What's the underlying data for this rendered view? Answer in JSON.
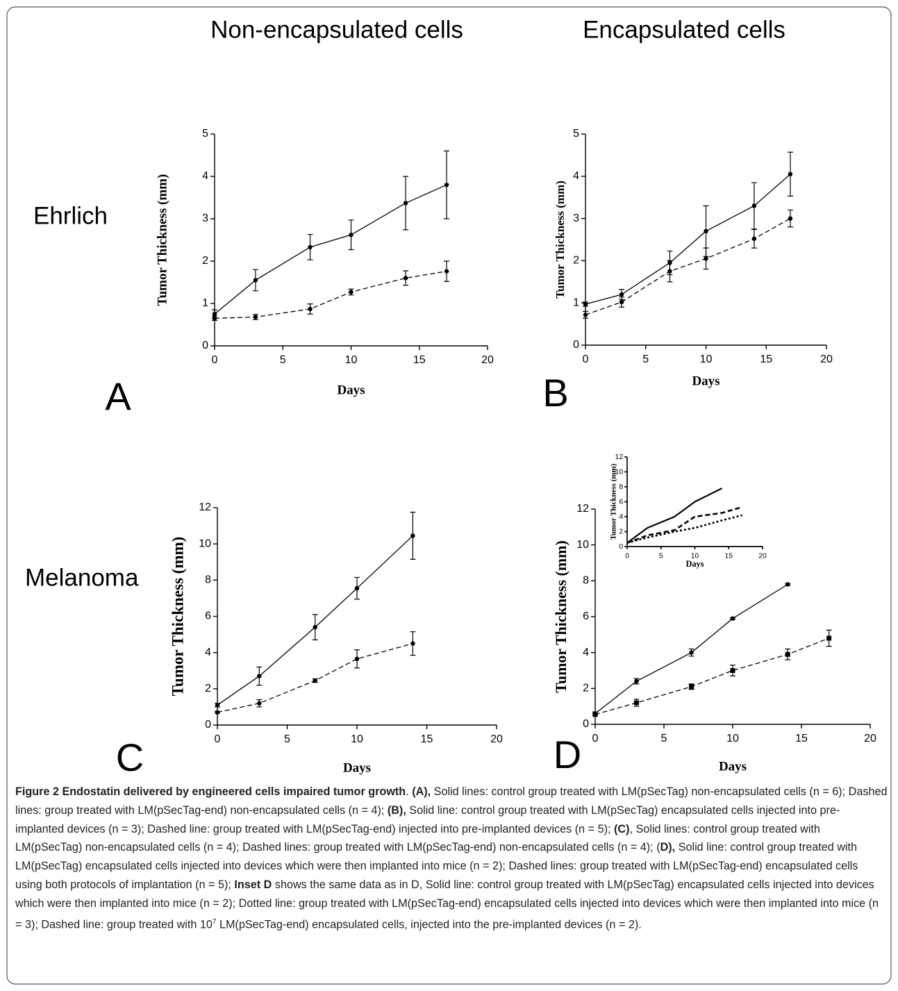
{
  "headers": [
    "Non-encapsulated cells",
    "Encapsulated cells"
  ],
  "row_labels": [
    "Ehrlich",
    "Melanoma"
  ],
  "panel_labels": [
    "A",
    "B",
    "C",
    "D"
  ],
  "chart_data": [
    {
      "type": "line",
      "ylabel": "Tumor Thickness (mm)",
      "xlabel": "Days",
      "xlim": [
        0,
        20
      ],
      "xticks": [
        0,
        5,
        10,
        15,
        20
      ],
      "ylim": [
        0,
        5
      ],
      "yticks": [
        0,
        1,
        2,
        3,
        4,
        5
      ],
      "series": [
        {
          "color": "#000000",
          "linestyle": "solid",
          "marker": "circle",
          "x": [
            0,
            3,
            7,
            10,
            14,
            17
          ],
          "values": [
            0.75,
            1.55,
            2.33,
            2.62,
            3.37,
            3.8
          ],
          "errors": [
            0.1,
            0.25,
            0.3,
            0.35,
            0.63,
            0.8
          ]
        },
        {
          "color": "#000000",
          "linestyle": "dashed",
          "marker": "circle",
          "x": [
            0,
            3,
            7,
            10,
            14,
            17
          ],
          "values": [
            0.65,
            0.68,
            0.87,
            1.27,
            1.6,
            1.76
          ],
          "errors": [
            0.05,
            0.06,
            0.12,
            0.07,
            0.17,
            0.24
          ]
        }
      ]
    },
    {
      "type": "line",
      "ylabel": "Tumor Thickness (mm)",
      "xlabel": "Days",
      "xlim": [
        0,
        20
      ],
      "xticks": [
        0,
        5,
        10,
        15,
        20
      ],
      "ylim": [
        0,
        5
      ],
      "yticks": [
        0,
        1,
        2,
        3,
        4,
        5
      ],
      "series": [
        {
          "color": "#000000",
          "linestyle": "solid",
          "marker": "circle",
          "x": [
            0,
            3,
            7,
            10,
            14,
            17
          ],
          "values": [
            0.97,
            1.2,
            1.95,
            2.7,
            3.3,
            4.05
          ],
          "errors": [
            0.05,
            0.12,
            0.28,
            0.6,
            0.55,
            0.52
          ]
        },
        {
          "color": "#000000",
          "linestyle": "dashed",
          "marker": "circle",
          "x": [
            0,
            3,
            7,
            10,
            14,
            17
          ],
          "values": [
            0.72,
            1.02,
            1.75,
            2.05,
            2.52,
            3.0
          ],
          "errors": [
            0.08,
            0.12,
            0.25,
            0.25,
            0.22,
            0.2
          ]
        }
      ]
    },
    {
      "type": "line",
      "ylabel": "Tumor Thickness (mm)",
      "xlabel": "Days",
      "xlim": [
        0,
        20
      ],
      "xticks": [
        0,
        5,
        10,
        15,
        20
      ],
      "ylim": [
        0,
        12
      ],
      "yticks": [
        0,
        2,
        4,
        6,
        8,
        10,
        12
      ],
      "series": [
        {
          "color": "#000000",
          "linestyle": "solid",
          "marker": "circle",
          "x": [
            0,
            3,
            7,
            10,
            14
          ],
          "values": [
            1.1,
            2.7,
            5.4,
            7.55,
            10.45
          ],
          "errors": [
            0.1,
            0.5,
            0.7,
            0.6,
            1.3
          ]
        },
        {
          "color": "#000000",
          "linestyle": "dashed",
          "marker": "circle",
          "x": [
            0,
            3,
            7,
            10,
            14
          ],
          "values": [
            0.7,
            1.2,
            2.45,
            3.65,
            4.5
          ],
          "errors": [
            0.05,
            0.2,
            0.1,
            0.5,
            0.65
          ]
        }
      ]
    },
    {
      "type": "line",
      "ylabel": "Tumor Thickness (mm)",
      "xlabel": "Days",
      "xlim": [
        0,
        20
      ],
      "xticks": [
        0,
        5,
        10,
        15,
        20
      ],
      "ylim": [
        0,
        12
      ],
      "yticks": [
        0,
        2,
        4,
        6,
        8,
        10,
        12
      ],
      "series": [
        {
          "color": "#000000",
          "linestyle": "solid",
          "marker": "circle",
          "x": [
            0,
            3,
            7,
            10,
            14
          ],
          "values": [
            0.6,
            2.4,
            4.0,
            5.9,
            7.8
          ],
          "errors": [
            0.1,
            0.15,
            0.2,
            0.05,
            0.05
          ]
        },
        {
          "color": "#000000",
          "linestyle": "dashed",
          "marker": "square",
          "x": [
            0,
            3,
            7,
            10,
            14,
            17
          ],
          "values": [
            0.55,
            1.2,
            2.1,
            3.0,
            3.9,
            4.8
          ],
          "errors": [
            0.05,
            0.2,
            0.15,
            0.3,
            0.3,
            0.45
          ]
        }
      ]
    },
    {
      "type": "line",
      "ylabel": "Tumor Thickness (mm)",
      "xlabel": "Days",
      "xlim": [
        0,
        20
      ],
      "xticks": [
        0,
        5,
        10,
        15,
        20
      ],
      "ylim": [
        0,
        12
      ],
      "yticks": [
        0,
        2,
        4,
        6,
        8,
        10,
        12
      ],
      "series": [
        {
          "color": "#000000",
          "linestyle": "solid",
          "marker": "none",
          "x": [
            0,
            3,
            7,
            10,
            14
          ],
          "values": [
            0.5,
            2.5,
            4.0,
            6.0,
            7.8
          ]
        },
        {
          "color": "#000000",
          "linestyle": "dashed",
          "marker": "none",
          "x": [
            0,
            3,
            7,
            10,
            14,
            17
          ],
          "values": [
            0.5,
            1.5,
            2.2,
            4.0,
            4.5,
            5.3
          ]
        },
        {
          "color": "#000000",
          "linestyle": "dotted",
          "marker": "none",
          "x": [
            0,
            3,
            7,
            10,
            14,
            17
          ],
          "values": [
            0.5,
            1.2,
            2.0,
            2.5,
            3.5,
            4.2
          ]
        }
      ]
    }
  ],
  "caption": {
    "segments": [
      {
        "text": "Figure 2 Endostatin delivered by engineered cells impaired tumor growth",
        "bold": true
      },
      {
        "text": ". "
      },
      {
        "text": "(A),",
        "bold": true
      },
      {
        "text": " Solid lines: control group treated with LM(pSecTag) non-encapsulated cells (n = 6); Dashed lines: group treated with LM(pSecTag-end) non-encapsulated cells (n = 4); "
      },
      {
        "text": "(B),",
        "bold": true
      },
      {
        "text": " Solid line: control group treated with LM(pSecTag) encapsulated cells injected into pre-implanted devices (n = 3); Dashed line: group treated with LM(pSecTag-end) injected into pre-implanted devices (n = 5); "
      },
      {
        "text": "(C)",
        "bold": true
      },
      {
        "text": ", Solid lines: control group treated with LM(pSecTag) non-encapsulated cells (n = 4); Dashed lines: group treated with LM(pSecTag-end) non-encapsulated cells (n = 4); ("
      },
      {
        "text": "D),",
        "bold": true
      },
      {
        "text": " Solid line: control group treated with LM(pSecTag) encapsulated cells injected into devices which were then implanted into mice (n = 2); Dashed lines: group treated with LM(pSecTag-end) encapsulated cells using both protocols of implantation (n = 5); "
      },
      {
        "text": "Inset D",
        "bold": true
      },
      {
        "text": " shows the same data as in D, Solid line: control group treated with LM(pSecTag) encapsulated cells injected into devices which were then implanted into mice (n = 2); Dotted line: group treated with LM(pSecTag-end) encapsulated cells injected into devices which were then implanted into mice (n = 3); Dashed line: group treated with 10"
      },
      {
        "text": "7",
        "sup": true
      },
      {
        "text": " LM(pSecTag-end) encapsulated cells, injected into the pre-implanted devices (n = 2)."
      }
    ]
  }
}
